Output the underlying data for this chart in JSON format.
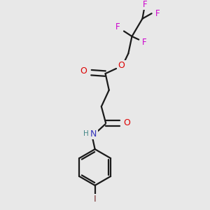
{
  "bg_color": "#e8e8e8",
  "bond_color": "#1a1a1a",
  "oxygen_color": "#dd0000",
  "nitrogen_color": "#3333bb",
  "fluorine_color": "#cc00cc",
  "iodine_color": "#7a3535",
  "hydrogen_color": "#448888",
  "figsize": [
    3.0,
    3.0
  ],
  "dpi": 100,
  "xlim": [
    0,
    10
  ],
  "ylim": [
    0,
    10
  ]
}
